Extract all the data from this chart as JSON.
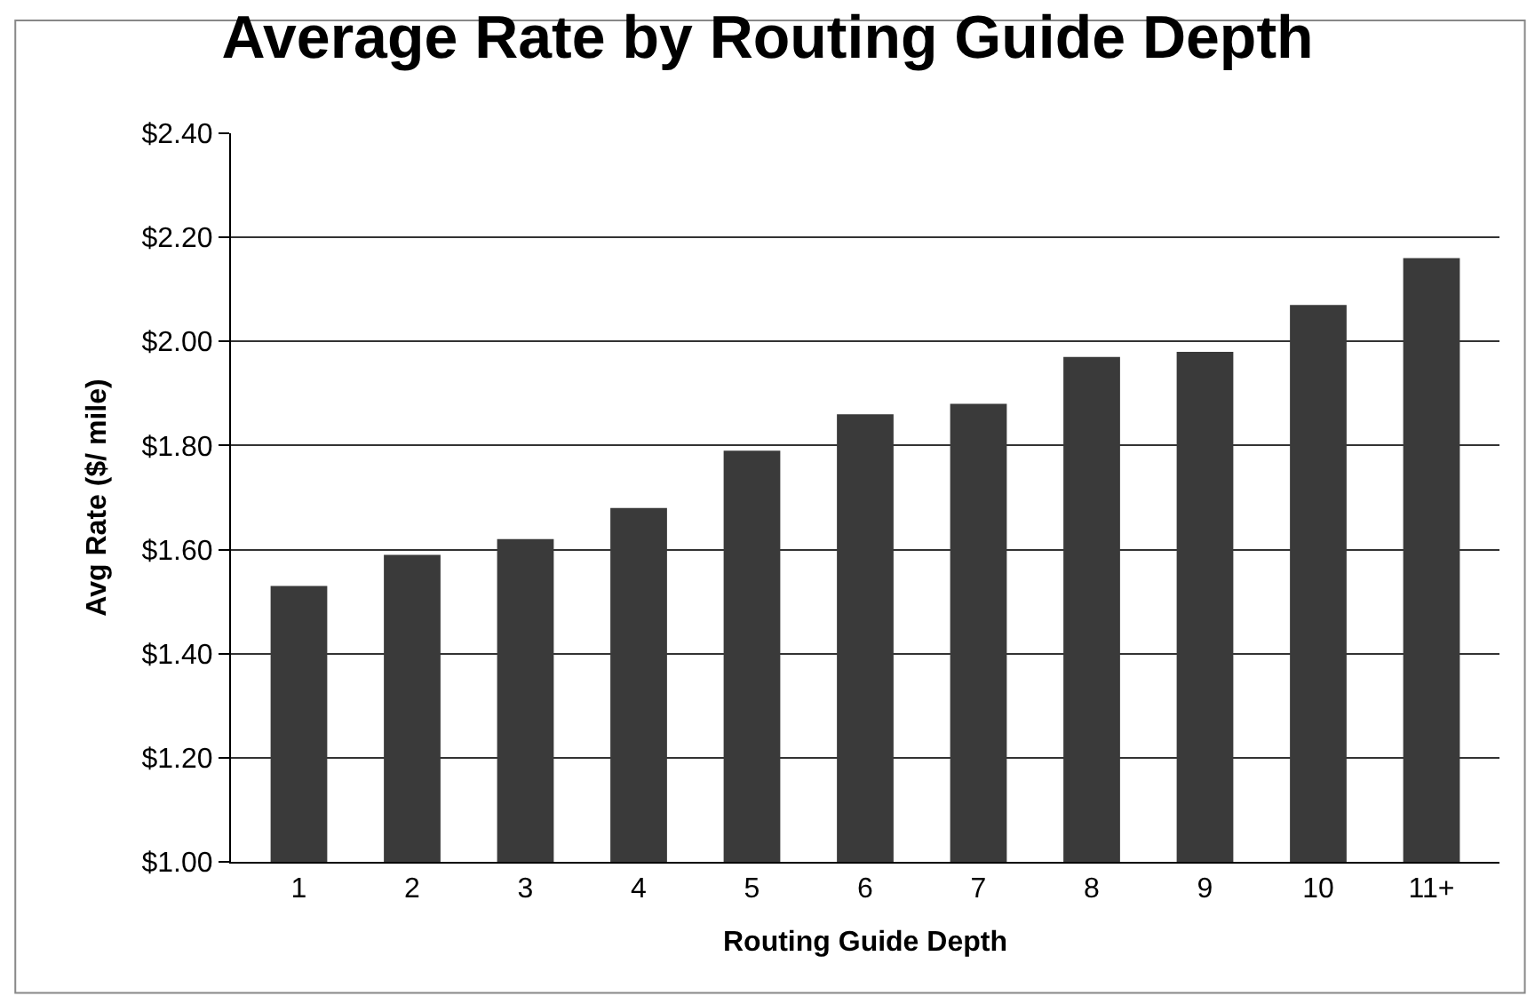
{
  "chart_data": {
    "type": "bar",
    "title": "Average Rate by Routing Guide Depth",
    "xlabel": "Routing Guide Depth",
    "ylabel": "Avg Rate ($/ mile)",
    "categories": [
      "1",
      "2",
      "3",
      "4",
      "5",
      "6",
      "7",
      "8",
      "9",
      "10",
      "11+"
    ],
    "values": [
      1.53,
      1.59,
      1.62,
      1.68,
      1.79,
      1.86,
      1.88,
      1.97,
      1.98,
      2.07,
      2.16
    ],
    "color": "#3a3a3a",
    "ylim": [
      1.0,
      2.4
    ],
    "yticks": [
      {
        "value": 1.0,
        "label": "$1.00"
      },
      {
        "value": 1.2,
        "label": "$1.20"
      },
      {
        "value": 1.4,
        "label": "$1.40"
      },
      {
        "value": 1.6,
        "label": "$1.60"
      },
      {
        "value": 1.8,
        "label": "$1.80"
      },
      {
        "value": 2.0,
        "label": "$2.00"
      },
      {
        "value": 2.2,
        "label": "$2.20"
      },
      {
        "value": 2.4,
        "label": "$2.40"
      }
    ],
    "grid": "y",
    "legend": false
  }
}
